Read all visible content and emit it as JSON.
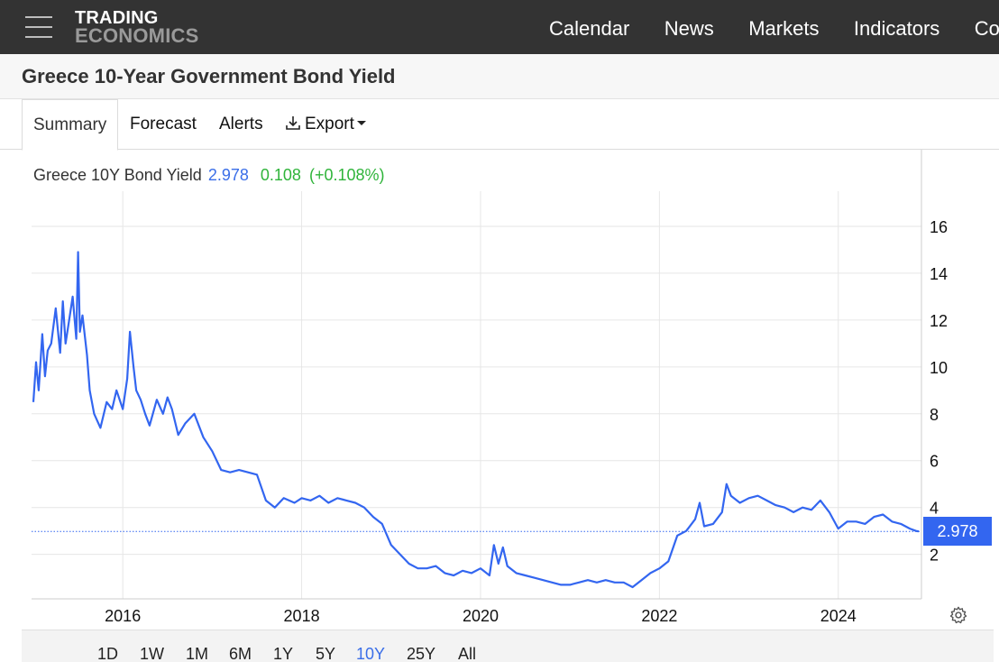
{
  "header": {
    "logo_line1": "TRADING",
    "logo_line2": "ECONOMICS",
    "nav": [
      "Calendar",
      "News",
      "Markets",
      "Indicators",
      "Co"
    ]
  },
  "page": {
    "title": "Greece 10-Year Government Bond Yield"
  },
  "tabs": [
    {
      "label": "Summary"
    },
    {
      "label": "Forecast"
    },
    {
      "label": "Alerts"
    },
    {
      "label": "Export"
    }
  ],
  "legend": {
    "name": "Greece 10Y Bond Yield",
    "last": "2.978",
    "change": "0.108",
    "change_pct": "(+0.108%)"
  },
  "price_tag": "2.978",
  "ranges": [
    "1D",
    "1W",
    "1M",
    "6M",
    "1Y",
    "5Y",
    "10Y",
    "25Y",
    "All"
  ],
  "active_range": "10Y",
  "colors": {
    "line": "#3366f0",
    "positive": "#2fb43a",
    "topbar": "#333333"
  },
  "chart_data": {
    "type": "line",
    "title": "",
    "xlabel": "",
    "ylabel": "",
    "x_ticks": [
      "2016",
      "2018",
      "2020",
      "2022",
      "2024"
    ],
    "y_ticks": [
      2,
      4,
      6,
      8,
      10,
      12,
      14,
      16
    ],
    "ylim": [
      0.1,
      17.5
    ],
    "xlim": [
      2014.98,
      2024.93
    ],
    "grid": true,
    "reference_value": 2.978,
    "series": [
      {
        "name": "Greece 10Y Bond Yield",
        "x": [
          2015.0,
          2015.03,
          2015.06,
          2015.1,
          2015.13,
          2015.16,
          2015.2,
          2015.25,
          2015.3,
          2015.33,
          2015.36,
          2015.4,
          2015.44,
          2015.48,
          2015.5,
          2015.52,
          2015.55,
          2015.6,
          2015.63,
          2015.68,
          2015.75,
          2015.82,
          2015.88,
          2015.93,
          2016.0,
          2016.05,
          2016.08,
          2016.12,
          2016.15,
          2016.2,
          2016.25,
          2016.3,
          2016.38,
          2016.45,
          2016.5,
          2016.55,
          2016.62,
          2016.7,
          2016.8,
          2016.9,
          2017.0,
          2017.1,
          2017.2,
          2017.3,
          2017.4,
          2017.5,
          2017.6,
          2017.7,
          2017.8,
          2017.92,
          2018.0,
          2018.1,
          2018.2,
          2018.3,
          2018.4,
          2018.5,
          2018.6,
          2018.7,
          2018.8,
          2018.9,
          2019.0,
          2019.1,
          2019.2,
          2019.3,
          2019.4,
          2019.5,
          2019.6,
          2019.7,
          2019.8,
          2019.9,
          2020.0,
          2020.1,
          2020.15,
          2020.2,
          2020.25,
          2020.3,
          2020.4,
          2020.5,
          2020.6,
          2020.7,
          2020.8,
          2020.9,
          2021.0,
          2021.1,
          2021.2,
          2021.3,
          2021.4,
          2021.5,
          2021.6,
          2021.7,
          2021.8,
          2021.9,
          2022.0,
          2022.1,
          2022.2,
          2022.3,
          2022.4,
          2022.45,
          2022.5,
          2022.6,
          2022.7,
          2022.75,
          2022.8,
          2022.9,
          2023.0,
          2023.1,
          2023.2,
          2023.3,
          2023.4,
          2023.5,
          2023.6,
          2023.7,
          2023.8,
          2023.9,
          2024.0,
          2024.1,
          2024.2,
          2024.3,
          2024.4,
          2024.5,
          2024.6,
          2024.7,
          2024.8,
          2024.87,
          2024.9
        ],
        "y": [
          8.5,
          10.2,
          9.0,
          11.4,
          9.6,
          10.7,
          11.0,
          12.5,
          10.6,
          12.8,
          11.0,
          12.0,
          13.0,
          11.2,
          14.9,
          11.5,
          12.2,
          10.5,
          9.0,
          8.0,
          7.4,
          8.5,
          8.2,
          9.0,
          8.2,
          9.5,
          11.5,
          10.0,
          9.0,
          8.6,
          8.0,
          7.5,
          8.6,
          8.0,
          8.7,
          8.2,
          7.1,
          7.6,
          8.0,
          7.0,
          6.4,
          5.6,
          5.5,
          5.6,
          5.5,
          5.4,
          4.3,
          4.0,
          4.4,
          4.2,
          4.4,
          4.3,
          4.5,
          4.2,
          4.4,
          4.3,
          4.2,
          4.0,
          3.6,
          3.3,
          2.4,
          2.0,
          1.6,
          1.4,
          1.4,
          1.5,
          1.2,
          1.1,
          1.3,
          1.2,
          1.4,
          1.1,
          2.4,
          1.6,
          2.3,
          1.5,
          1.2,
          1.1,
          1.0,
          0.9,
          0.8,
          0.7,
          0.7,
          0.8,
          0.9,
          0.8,
          0.9,
          0.8,
          0.8,
          0.6,
          0.9,
          1.2,
          1.4,
          1.7,
          2.8,
          3.0,
          3.5,
          4.2,
          3.2,
          3.3,
          3.8,
          5.0,
          4.5,
          4.2,
          4.4,
          4.5,
          4.3,
          4.1,
          4.0,
          3.8,
          4.0,
          3.9,
          4.3,
          3.8,
          3.1,
          3.4,
          3.4,
          3.3,
          3.6,
          3.7,
          3.4,
          3.3,
          3.1,
          3.0,
          2.98
        ]
      }
    ]
  }
}
